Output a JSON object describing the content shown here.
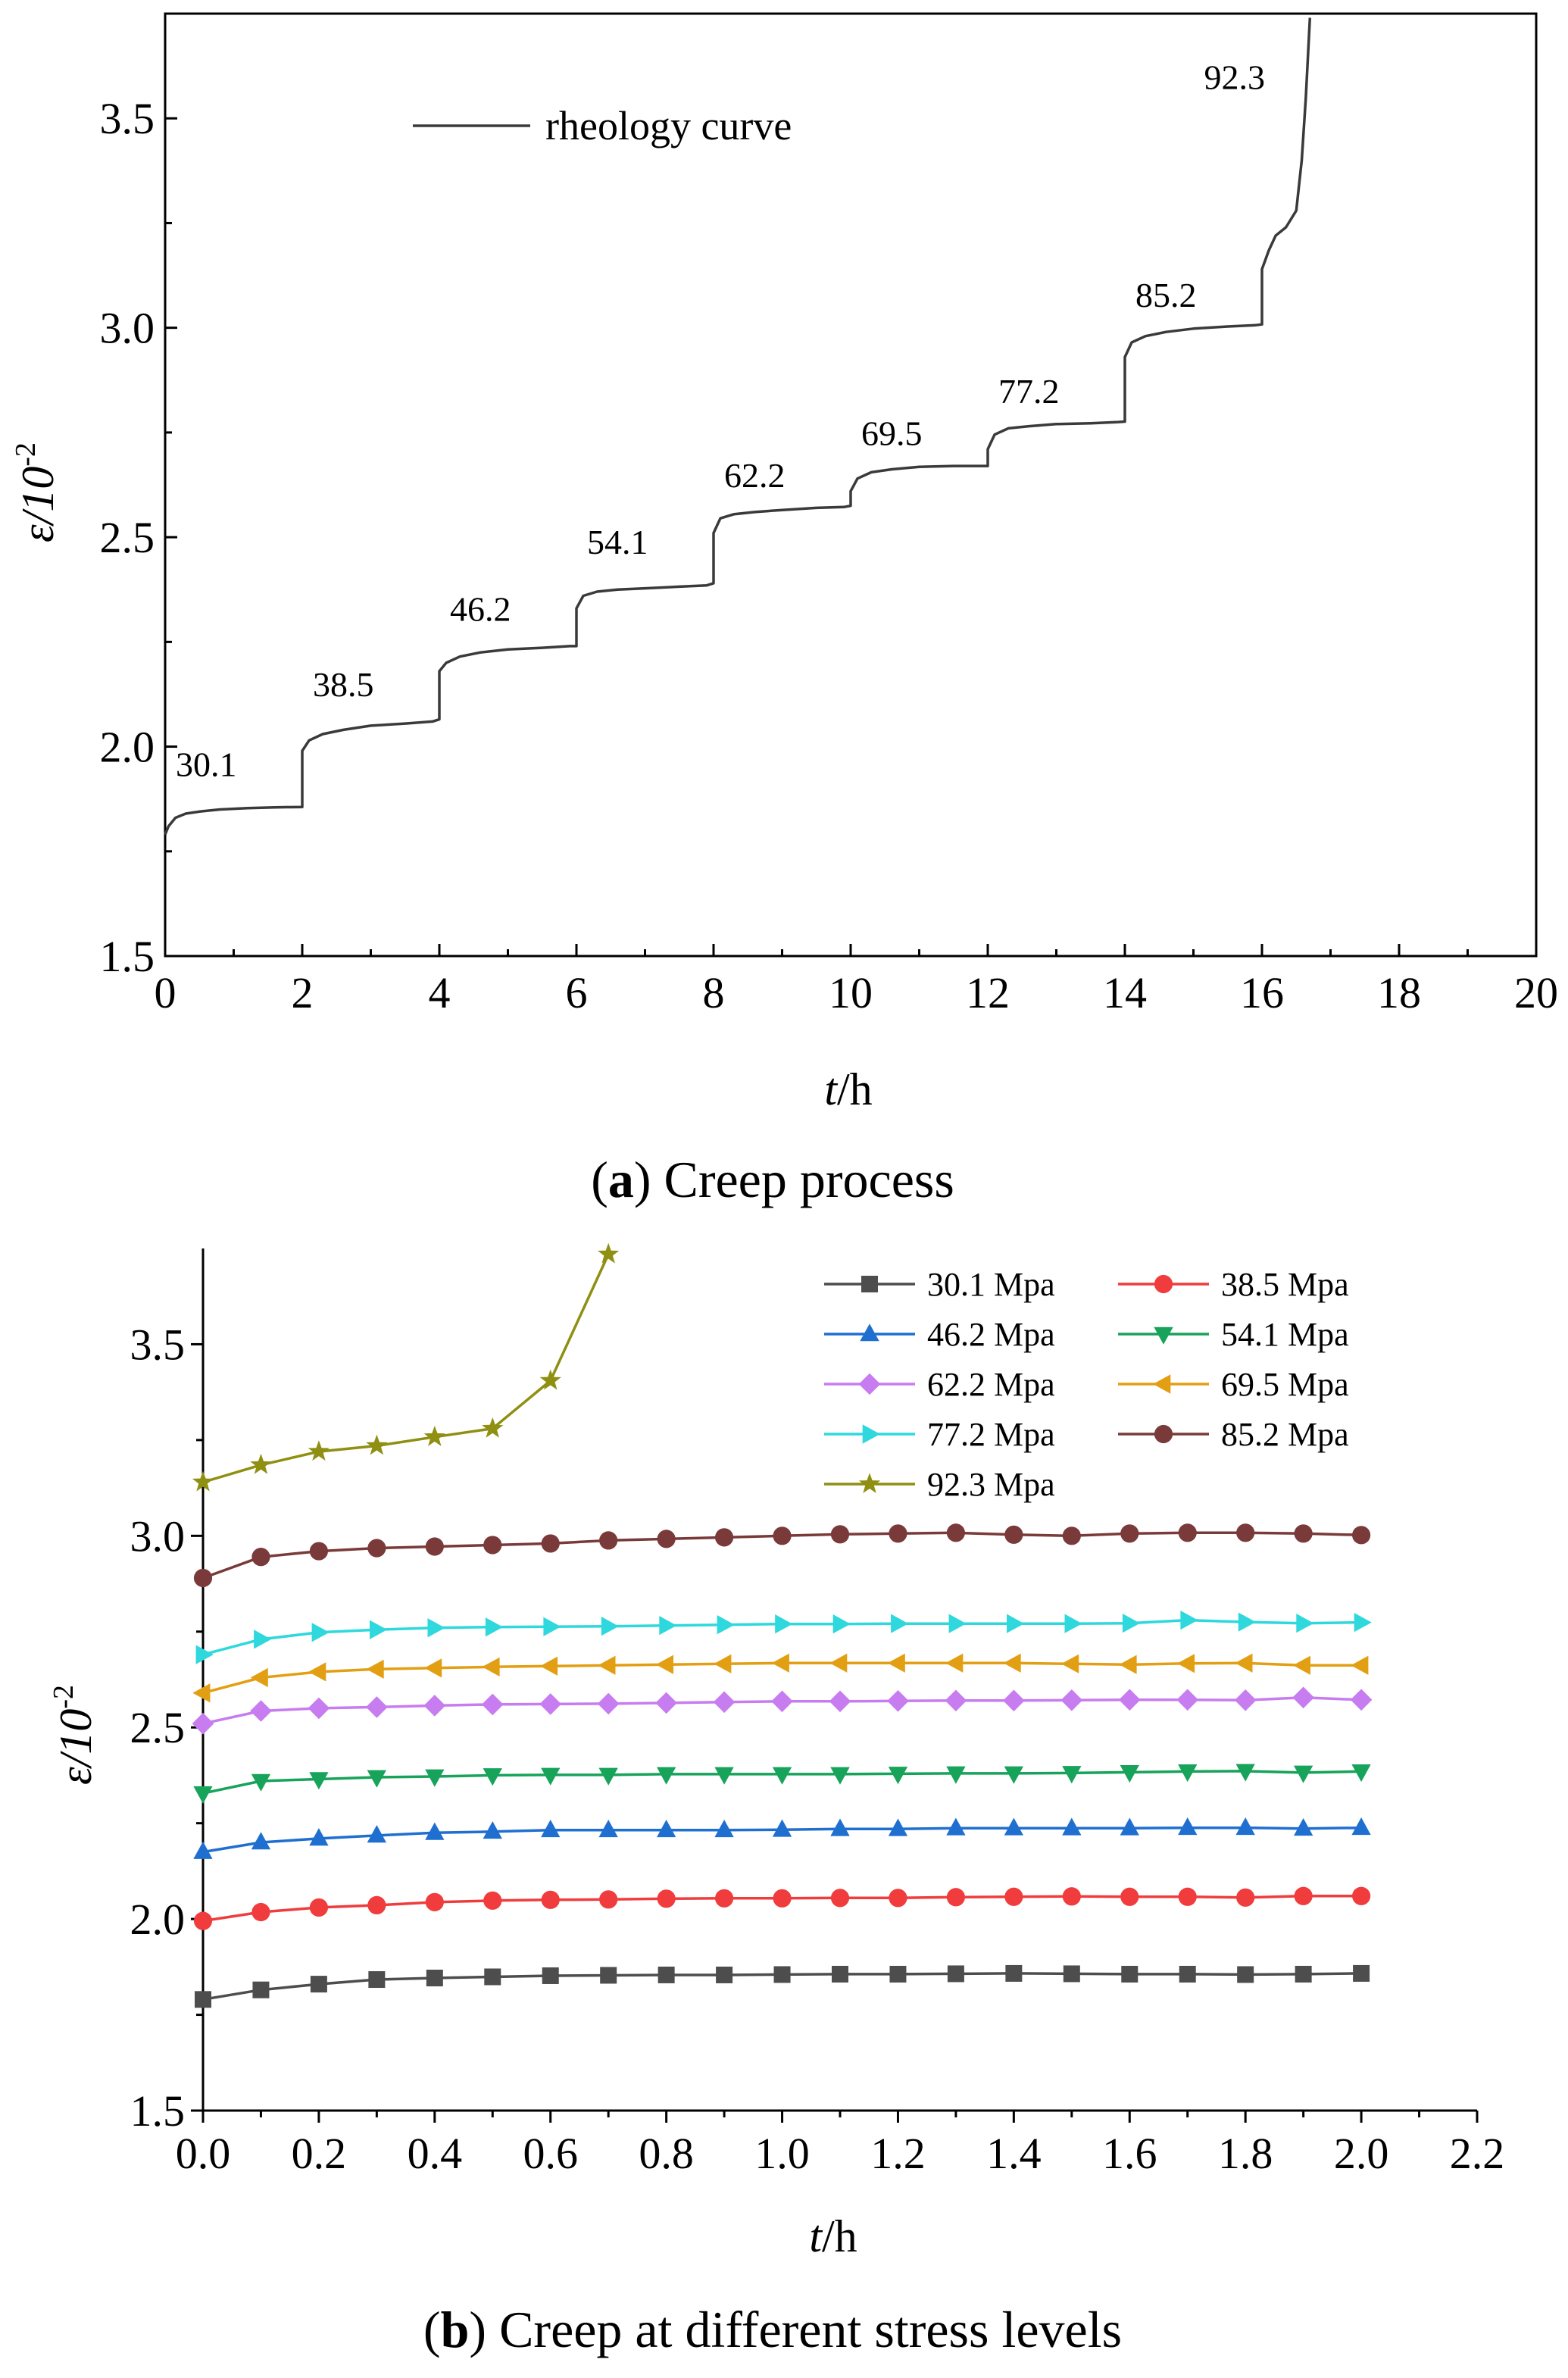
{
  "chart_data": [
    {
      "id": "a",
      "type": "line",
      "caption_letter": "a",
      "caption_text": "Creep process",
      "ylabel_main": "ε/10",
      "ylabel_sup": "-2",
      "xlabel_main": "t",
      "xlabel_rest": "/h",
      "xlim": [
        0,
        20
      ],
      "ylim": [
        1.5,
        3.75
      ],
      "xticks": [
        "0",
        "2",
        "4",
        "6",
        "8",
        "10",
        "12",
        "14",
        "16",
        "18",
        "20"
      ],
      "yticks": [
        "1.5",
        "2.0",
        "2.5",
        "3.0",
        "3.5"
      ],
      "legend": [
        "rheology  curve"
      ],
      "color": "#3a3a3a",
      "series": [
        {
          "name": "rheology curve",
          "x": [
            0,
            0.05,
            0.15,
            0.3,
            0.5,
            0.8,
            1.2,
            1.6,
            2.0,
            2.0,
            2.1,
            2.3,
            2.6,
            3.0,
            3.5,
            3.9,
            4.0,
            4.0,
            4.1,
            4.3,
            4.6,
            5.0,
            5.5,
            5.9,
            6.0,
            6.0,
            6.1,
            6.3,
            6.6,
            7.0,
            7.5,
            7.9,
            8.0,
            8.0,
            8.1,
            8.3,
            8.6,
            9.0,
            9.5,
            9.9,
            10.0,
            10.0,
            10.1,
            10.3,
            10.6,
            11.0,
            11.5,
            11.9,
            12.0,
            12.0,
            12.1,
            12.3,
            12.6,
            13.0,
            13.5,
            13.9,
            14.0,
            14.0,
            14.1,
            14.3,
            14.6,
            15.0,
            15.5,
            15.9,
            16.0,
            16.0,
            16.1,
            16.2,
            16.35,
            16.5,
            16.58,
            16.64,
            16.7
          ],
          "y": [
            1.79,
            1.81,
            1.83,
            1.84,
            1.845,
            1.85,
            1.853,
            1.855,
            1.856,
            1.99,
            2.015,
            2.03,
            2.04,
            2.05,
            2.055,
            2.06,
            2.065,
            2.18,
            2.2,
            2.215,
            2.225,
            2.232,
            2.236,
            2.24,
            2.24,
            2.33,
            2.36,
            2.37,
            2.375,
            2.378,
            2.382,
            2.385,
            2.39,
            2.51,
            2.545,
            2.555,
            2.56,
            2.565,
            2.57,
            2.572,
            2.575,
            2.61,
            2.64,
            2.655,
            2.662,
            2.668,
            2.67,
            2.67,
            2.67,
            2.71,
            2.745,
            2.76,
            2.765,
            2.77,
            2.772,
            2.775,
            2.776,
            2.93,
            2.965,
            2.98,
            2.99,
            2.998,
            3.003,
            3.006,
            3.008,
            3.14,
            3.185,
            3.22,
            3.24,
            3.28,
            3.4,
            3.55,
            3.74
          ]
        }
      ],
      "annotations": [
        {
          "text": "30.1",
          "x": 0.6,
          "y": 1.93
        },
        {
          "text": "38.5",
          "x": 2.6,
          "y": 2.12
        },
        {
          "text": "46.2",
          "x": 4.6,
          "y": 2.3
        },
        {
          "text": "54.1",
          "x": 6.6,
          "y": 2.46
        },
        {
          "text": "62.2",
          "x": 8.6,
          "y": 2.62
        },
        {
          "text": "69.5",
          "x": 10.6,
          "y": 2.72
        },
        {
          "text": "77.2",
          "x": 12.6,
          "y": 2.82
        },
        {
          "text": "85.2",
          "x": 14.6,
          "y": 3.05
        },
        {
          "text": "92.3",
          "x": 15.6,
          "y": 3.57
        }
      ]
    },
    {
      "id": "b",
      "type": "line",
      "caption_letter": "b",
      "caption_text": "Creep at different stress levels",
      "ylabel_main": "ε/10",
      "ylabel_sup": "-2",
      "xlabel_main": "t",
      "xlabel_rest": "/h",
      "xlim": [
        0,
        2.2
      ],
      "ylim": [
        1.5,
        3.75
      ],
      "xticks": [
        "0.0",
        "0.2",
        "0.4",
        "0.6",
        "0.8",
        "1.0",
        "1.2",
        "1.4",
        "1.6",
        "1.8",
        "2.0",
        "2.2"
      ],
      "yticks": [
        "1.5",
        "2.0",
        "2.5",
        "3.0",
        "3.5"
      ],
      "x": [
        0,
        0.1,
        0.2,
        0.3,
        0.4,
        0.5,
        0.6,
        0.7,
        0.8,
        0.9,
        1.0,
        1.1,
        1.2,
        1.3,
        1.4,
        1.5,
        1.6,
        1.7,
        1.8,
        1.9,
        2.0
      ],
      "series": [
        {
          "name": "30.1 Mpa",
          "color": "#4d4d4d",
          "marker": "square",
          "values": [
            1.79,
            1.815,
            1.83,
            1.842,
            1.846,
            1.849,
            1.852,
            1.853,
            1.854,
            1.854,
            1.855,
            1.856,
            1.856,
            1.857,
            1.858,
            1.857,
            1.856,
            1.856,
            1.855,
            1.856,
            1.858
          ]
        },
        {
          "name": "38.5 Mpa",
          "color": "#f03c3c",
          "marker": "circle",
          "values": [
            1.995,
            2.018,
            2.03,
            2.036,
            2.044,
            2.048,
            2.05,
            2.051,
            2.053,
            2.054,
            2.054,
            2.055,
            2.055,
            2.057,
            2.058,
            2.059,
            2.058,
            2.058,
            2.056,
            2.06,
            2.06
          ]
        },
        {
          "name": "46.2 Mpa",
          "color": "#1f6fd1",
          "marker": "triangle-up",
          "values": [
            2.175,
            2.2,
            2.21,
            2.218,
            2.225,
            2.228,
            2.232,
            2.232,
            2.232,
            2.232,
            2.233,
            2.235,
            2.235,
            2.237,
            2.237,
            2.237,
            2.237,
            2.238,
            2.238,
            2.236,
            2.238
          ]
        },
        {
          "name": "54.1 Mpa",
          "color": "#17a35a",
          "marker": "triangle-down",
          "values": [
            2.328,
            2.36,
            2.365,
            2.37,
            2.372,
            2.375,
            2.376,
            2.376,
            2.378,
            2.378,
            2.378,
            2.378,
            2.379,
            2.38,
            2.38,
            2.381,
            2.383,
            2.385,
            2.386,
            2.382,
            2.385
          ]
        },
        {
          "name": "62.2 Mpa",
          "color": "#c77cf0",
          "marker": "diamond",
          "values": [
            2.51,
            2.543,
            2.55,
            2.553,
            2.557,
            2.56,
            2.561,
            2.562,
            2.564,
            2.566,
            2.568,
            2.568,
            2.569,
            2.57,
            2.57,
            2.571,
            2.572,
            2.572,
            2.571,
            2.578,
            2.572
          ]
        },
        {
          "name": "69.5 Mpa",
          "color": "#e39f13",
          "marker": "triangle-left",
          "values": [
            2.59,
            2.63,
            2.645,
            2.652,
            2.655,
            2.658,
            2.66,
            2.662,
            2.664,
            2.666,
            2.668,
            2.668,
            2.668,
            2.668,
            2.668,
            2.666,
            2.664,
            2.667,
            2.668,
            2.662,
            2.662
          ]
        },
        {
          "name": "77.2 Mpa",
          "color": "#2ed8dc",
          "marker": "triangle-right",
          "values": [
            2.69,
            2.73,
            2.748,
            2.755,
            2.76,
            2.762,
            2.763,
            2.764,
            2.766,
            2.768,
            2.77,
            2.77,
            2.771,
            2.771,
            2.771,
            2.771,
            2.772,
            2.78,
            2.775,
            2.772,
            2.774
          ]
        },
        {
          "name": "85.2 Mpa",
          "color": "#7a3a3a",
          "marker": "circle",
          "values": [
            2.89,
            2.945,
            2.96,
            2.968,
            2.972,
            2.976,
            2.98,
            2.988,
            2.992,
            2.996,
            3.0,
            3.004,
            3.006,
            3.008,
            3.003,
            3.0,
            3.006,
            3.008,
            3.008,
            3.006,
            3.002
          ]
        },
        {
          "name": "92.3 Mpa",
          "color": "#8f8f12",
          "marker": "star",
          "x": [
            0,
            0.1,
            0.2,
            0.3,
            0.4,
            0.5,
            0.6,
            0.7
          ],
          "values": [
            3.14,
            3.185,
            3.22,
            3.235,
            3.258,
            3.28,
            3.405,
            3.735
          ]
        }
      ]
    }
  ]
}
